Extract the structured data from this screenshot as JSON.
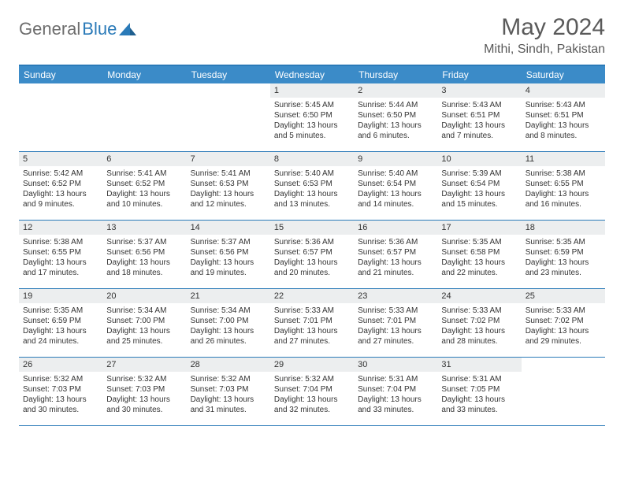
{
  "brand": {
    "text1": "General",
    "text2": "Blue"
  },
  "title": "May 2024",
  "location": "Mithi, Sindh, Pakistan",
  "colors": {
    "header_bg": "#3b8bc8",
    "border": "#2a7ab8",
    "daynum_bg": "#eceeef",
    "text": "#333333",
    "logo_gray": "#6d6d6d"
  },
  "weekdays": [
    "Sunday",
    "Monday",
    "Tuesday",
    "Wednesday",
    "Thursday",
    "Friday",
    "Saturday"
  ],
  "weeks": [
    [
      {
        "n": "",
        "sr": "",
        "ss": "",
        "dl": ""
      },
      {
        "n": "",
        "sr": "",
        "ss": "",
        "dl": ""
      },
      {
        "n": "",
        "sr": "",
        "ss": "",
        "dl": ""
      },
      {
        "n": "1",
        "sr": "Sunrise: 5:45 AM",
        "ss": "Sunset: 6:50 PM",
        "dl": "Daylight: 13 hours and 5 minutes."
      },
      {
        "n": "2",
        "sr": "Sunrise: 5:44 AM",
        "ss": "Sunset: 6:50 PM",
        "dl": "Daylight: 13 hours and 6 minutes."
      },
      {
        "n": "3",
        "sr": "Sunrise: 5:43 AM",
        "ss": "Sunset: 6:51 PM",
        "dl": "Daylight: 13 hours and 7 minutes."
      },
      {
        "n": "4",
        "sr": "Sunrise: 5:43 AM",
        "ss": "Sunset: 6:51 PM",
        "dl": "Daylight: 13 hours and 8 minutes."
      }
    ],
    [
      {
        "n": "5",
        "sr": "Sunrise: 5:42 AM",
        "ss": "Sunset: 6:52 PM",
        "dl": "Daylight: 13 hours and 9 minutes."
      },
      {
        "n": "6",
        "sr": "Sunrise: 5:41 AM",
        "ss": "Sunset: 6:52 PM",
        "dl": "Daylight: 13 hours and 10 minutes."
      },
      {
        "n": "7",
        "sr": "Sunrise: 5:41 AM",
        "ss": "Sunset: 6:53 PM",
        "dl": "Daylight: 13 hours and 12 minutes."
      },
      {
        "n": "8",
        "sr": "Sunrise: 5:40 AM",
        "ss": "Sunset: 6:53 PM",
        "dl": "Daylight: 13 hours and 13 minutes."
      },
      {
        "n": "9",
        "sr": "Sunrise: 5:40 AM",
        "ss": "Sunset: 6:54 PM",
        "dl": "Daylight: 13 hours and 14 minutes."
      },
      {
        "n": "10",
        "sr": "Sunrise: 5:39 AM",
        "ss": "Sunset: 6:54 PM",
        "dl": "Daylight: 13 hours and 15 minutes."
      },
      {
        "n": "11",
        "sr": "Sunrise: 5:38 AM",
        "ss": "Sunset: 6:55 PM",
        "dl": "Daylight: 13 hours and 16 minutes."
      }
    ],
    [
      {
        "n": "12",
        "sr": "Sunrise: 5:38 AM",
        "ss": "Sunset: 6:55 PM",
        "dl": "Daylight: 13 hours and 17 minutes."
      },
      {
        "n": "13",
        "sr": "Sunrise: 5:37 AM",
        "ss": "Sunset: 6:56 PM",
        "dl": "Daylight: 13 hours and 18 minutes."
      },
      {
        "n": "14",
        "sr": "Sunrise: 5:37 AM",
        "ss": "Sunset: 6:56 PM",
        "dl": "Daylight: 13 hours and 19 minutes."
      },
      {
        "n": "15",
        "sr": "Sunrise: 5:36 AM",
        "ss": "Sunset: 6:57 PM",
        "dl": "Daylight: 13 hours and 20 minutes."
      },
      {
        "n": "16",
        "sr": "Sunrise: 5:36 AM",
        "ss": "Sunset: 6:57 PM",
        "dl": "Daylight: 13 hours and 21 minutes."
      },
      {
        "n": "17",
        "sr": "Sunrise: 5:35 AM",
        "ss": "Sunset: 6:58 PM",
        "dl": "Daylight: 13 hours and 22 minutes."
      },
      {
        "n": "18",
        "sr": "Sunrise: 5:35 AM",
        "ss": "Sunset: 6:59 PM",
        "dl": "Daylight: 13 hours and 23 minutes."
      }
    ],
    [
      {
        "n": "19",
        "sr": "Sunrise: 5:35 AM",
        "ss": "Sunset: 6:59 PM",
        "dl": "Daylight: 13 hours and 24 minutes."
      },
      {
        "n": "20",
        "sr": "Sunrise: 5:34 AM",
        "ss": "Sunset: 7:00 PM",
        "dl": "Daylight: 13 hours and 25 minutes."
      },
      {
        "n": "21",
        "sr": "Sunrise: 5:34 AM",
        "ss": "Sunset: 7:00 PM",
        "dl": "Daylight: 13 hours and 26 minutes."
      },
      {
        "n": "22",
        "sr": "Sunrise: 5:33 AM",
        "ss": "Sunset: 7:01 PM",
        "dl": "Daylight: 13 hours and 27 minutes."
      },
      {
        "n": "23",
        "sr": "Sunrise: 5:33 AM",
        "ss": "Sunset: 7:01 PM",
        "dl": "Daylight: 13 hours and 27 minutes."
      },
      {
        "n": "24",
        "sr": "Sunrise: 5:33 AM",
        "ss": "Sunset: 7:02 PM",
        "dl": "Daylight: 13 hours and 28 minutes."
      },
      {
        "n": "25",
        "sr": "Sunrise: 5:33 AM",
        "ss": "Sunset: 7:02 PM",
        "dl": "Daylight: 13 hours and 29 minutes."
      }
    ],
    [
      {
        "n": "26",
        "sr": "Sunrise: 5:32 AM",
        "ss": "Sunset: 7:03 PM",
        "dl": "Daylight: 13 hours and 30 minutes."
      },
      {
        "n": "27",
        "sr": "Sunrise: 5:32 AM",
        "ss": "Sunset: 7:03 PM",
        "dl": "Daylight: 13 hours and 30 minutes."
      },
      {
        "n": "28",
        "sr": "Sunrise: 5:32 AM",
        "ss": "Sunset: 7:03 PM",
        "dl": "Daylight: 13 hours and 31 minutes."
      },
      {
        "n": "29",
        "sr": "Sunrise: 5:32 AM",
        "ss": "Sunset: 7:04 PM",
        "dl": "Daylight: 13 hours and 32 minutes."
      },
      {
        "n": "30",
        "sr": "Sunrise: 5:31 AM",
        "ss": "Sunset: 7:04 PM",
        "dl": "Daylight: 13 hours and 33 minutes."
      },
      {
        "n": "31",
        "sr": "Sunrise: 5:31 AM",
        "ss": "Sunset: 7:05 PM",
        "dl": "Daylight: 13 hours and 33 minutes."
      },
      {
        "n": "",
        "sr": "",
        "ss": "",
        "dl": ""
      }
    ]
  ]
}
